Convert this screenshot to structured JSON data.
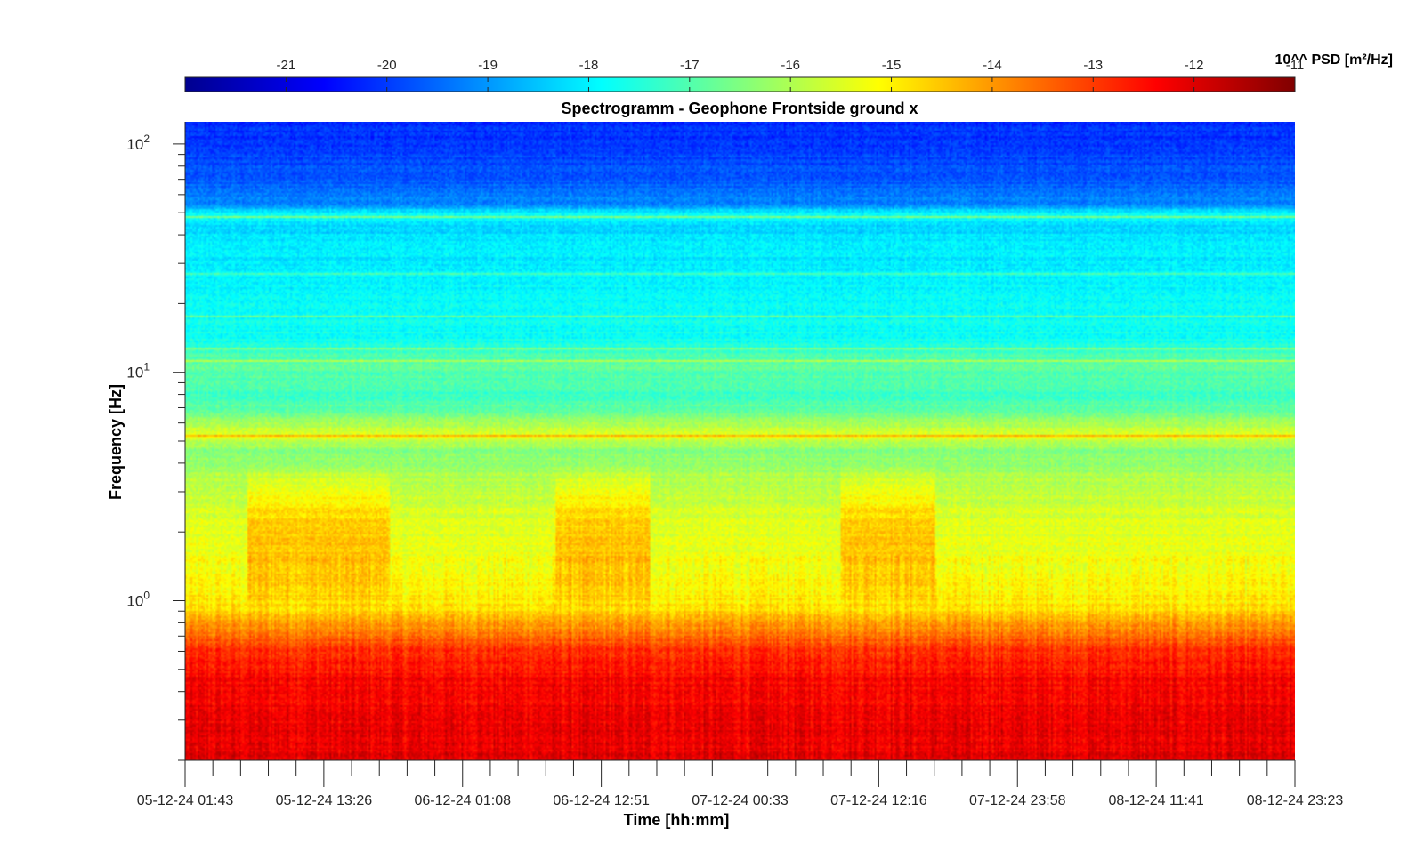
{
  "chart_data": {
    "type": "heatmap",
    "title": "Spectrogramm - Geophone Frontside ground x",
    "xlabel": "Time [hh:mm]",
    "ylabel": "Frequency [Hz]",
    "y_scale": "log",
    "ylim": [
      0.2,
      125
    ],
    "y_ticks": [
      {
        "value": 1,
        "base": "10",
        "exp": "0"
      },
      {
        "value": 10,
        "base": "10",
        "exp": "1"
      },
      {
        "value": 100,
        "base": "10",
        "exp": "2"
      }
    ],
    "x_tick_labels": [
      "05-12-24 01:43",
      "05-12-24 13:26",
      "06-12-24 01:08",
      "06-12-24 12:51",
      "07-12-24 00:33",
      "07-12-24 12:16",
      "07-12-24 23:58",
      "08-12-24 11:41",
      "08-12-24 23:23"
    ],
    "colorbar": {
      "label": "10^^ PSD [m²/Hz]",
      "range": [
        -22,
        -11
      ],
      "tick_labels": [
        "-21",
        "-20",
        "-19",
        "-18",
        "-17",
        "-16",
        "-15",
        "-14",
        "-13",
        "-12",
        "-11"
      ],
      "colormap": "jet"
    },
    "psd_profile": {
      "description_units": "log10 PSD [m²/Hz] vs frequency [Hz]",
      "frequency": [
        0.2,
        0.3,
        0.45,
        0.6,
        0.75,
        0.9,
        1.1,
        1.6,
        2.5,
        3.5,
        4.5,
        5.3,
        6.5,
        8,
        11,
        14,
        20,
        30,
        45,
        48,
        55,
        70,
        100,
        125
      ],
      "log_psd": [
        -12.1,
        -12.2,
        -12.4,
        -12.9,
        -13.8,
        -14.8,
        -15.0,
        -15.3,
        -15.6,
        -16.0,
        -16.5,
        -15.3,
        -16.6,
        -17.2,
        -16.8,
        -17.7,
        -17.8,
        -18.0,
        -18.3,
        -17.5,
        -19.2,
        -19.7,
        -20.0,
        -20.2
      ]
    },
    "spectral_lines_hz": [
      5.3,
      11.2,
      12.8,
      17.5,
      27,
      48
    ],
    "active_periods": [
      {
        "start": "05-12-24 07:00",
        "end": "05-12-24 19:00",
        "band_hz": [
          0.9,
          4.0
        ]
      },
      {
        "start": "06-12-24 09:00",
        "end": "06-12-24 17:00",
        "band_hz": [
          0.9,
          4.0
        ]
      },
      {
        "start": "07-12-24 09:00",
        "end": "07-12-24 17:00",
        "band_hz": [
          0.9,
          4.0
        ]
      }
    ]
  }
}
